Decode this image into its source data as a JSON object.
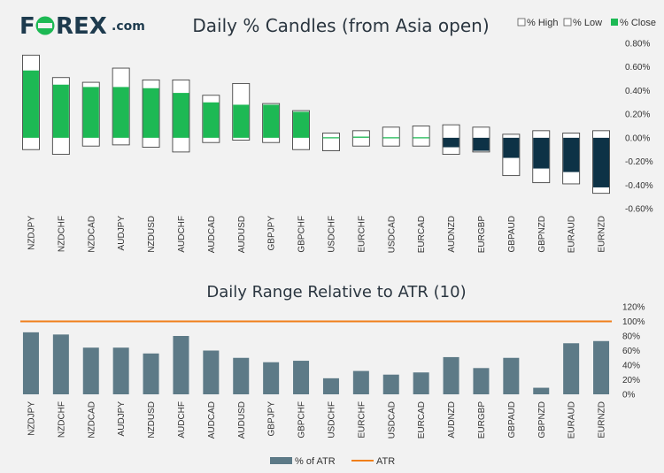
{
  "logo": {
    "text_fo": "F",
    "text_rex": "REX",
    "text_com": ".com"
  },
  "colors": {
    "brand_dark": "#1e3b4e",
    "brand_green": "#1db954",
    "close_up": "#1db954",
    "close_down": "#0d3246",
    "atr_bar": "#5d7a87",
    "atr_line": "#f07f1a"
  },
  "chart_data": [
    {
      "type": "candlestick",
      "title": "Daily % Candles (from Asia open)",
      "legend": [
        "% High",
        "% Low",
        "% Close"
      ],
      "legend_position": "top-right",
      "categories": [
        "NZDJPY",
        "NZDCHF",
        "NZDCAD",
        "AUDJPY",
        "NZDUSD",
        "AUDCHF",
        "AUDCAD",
        "AUDUSD",
        "GBPJPY",
        "GBPCHF",
        "USDCHF",
        "EURCHF",
        "USDCAD",
        "EURCAD",
        "AUDNZD",
        "EURGBP",
        "GBPAUD",
        "GBPNZD",
        "EURAUD",
        "EURNZD"
      ],
      "high": [
        0.7,
        0.51,
        0.47,
        0.59,
        0.49,
        0.49,
        0.36,
        0.46,
        0.29,
        0.23,
        0.04,
        0.06,
        0.09,
        0.1,
        0.11,
        0.09,
        0.03,
        0.06,
        0.04,
        0.06
      ],
      "low": [
        -0.1,
        -0.14,
        -0.07,
        -0.06,
        -0.08,
        -0.12,
        -0.04,
        -0.02,
        -0.04,
        -0.1,
        -0.11,
        -0.07,
        -0.07,
        -0.07,
        -0.14,
        -0.12,
        -0.32,
        -0.38,
        -0.39,
        -0.47
      ],
      "close": [
        0.57,
        0.45,
        0.43,
        0.43,
        0.42,
        0.38,
        0.3,
        0.28,
        0.28,
        0.22,
        0.0,
        0.01,
        0.0,
        0.0,
        -0.08,
        -0.11,
        -0.17,
        -0.26,
        -0.29,
        -0.42
      ],
      "yticks": [
        "0.80%",
        "0.60%",
        "0.40%",
        "0.20%",
        "0.00%",
        "-0.20%",
        "-0.40%",
        "-0.60%"
      ],
      "ylim": [
        -0.6,
        0.8
      ]
    },
    {
      "type": "bar",
      "title": "Daily Range Relative to ATR (10)",
      "legend": [
        "% of ATR",
        "ATR"
      ],
      "legend_position": "bottom",
      "categories": [
        "NZDJPY",
        "NZDCHF",
        "NZDCAD",
        "AUDJPY",
        "NZDUSD",
        "AUDCHF",
        "AUDCAD",
        "AUDUSD",
        "GBPJPY",
        "GBPCHF",
        "USDCHF",
        "EURCHF",
        "USDCAD",
        "EURCAD",
        "AUDNZD",
        "EURGBP",
        "GBPAUD",
        "GBPNZD",
        "EURAUD",
        "EURNZD"
      ],
      "series": [
        {
          "name": "% of ATR",
          "values": [
            85,
            82,
            64,
            64,
            56,
            80,
            60,
            50,
            44,
            46,
            22,
            32,
            27,
            30,
            51,
            36,
            50,
            9,
            70,
            73
          ]
        },
        {
          "name": "ATR",
          "values": [
            100,
            100,
            100,
            100,
            100,
            100,
            100,
            100,
            100,
            100,
            100,
            100,
            100,
            100,
            100,
            100,
            100,
            100,
            100,
            100
          ]
        }
      ],
      "yticks": [
        "120%",
        "100%",
        "80%",
        "60%",
        "40%",
        "20%",
        "0%"
      ],
      "ylim": [
        0,
        120
      ]
    }
  ]
}
